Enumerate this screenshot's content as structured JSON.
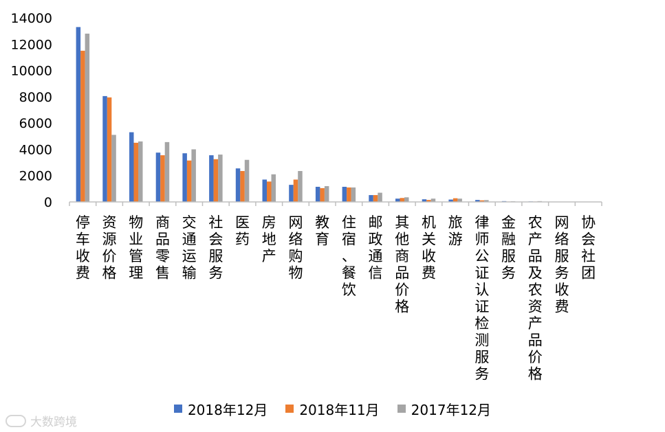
{
  "chart_data": {
    "type": "bar",
    "title": "",
    "xlabel": "",
    "ylabel": "",
    "ylim": [
      0,
      14000
    ],
    "yticks": [
      0,
      2000,
      4000,
      6000,
      8000,
      10000,
      12000,
      14000
    ],
    "grid": false,
    "legend_position": "bottom",
    "categories": [
      "停车收费",
      "资源价格",
      "物业管理",
      "商品零售",
      "交通运输",
      "社会服务",
      "医药",
      "房地产",
      "网络购物",
      "教育",
      "住宿、餐饮",
      "邮政通信",
      "其他商品价格",
      "机关收费",
      "旅游",
      "律师公证认证检测服务",
      "金融服务",
      "农产品及农资产品价格",
      "网络服务收费",
      "协会社团"
    ],
    "series": [
      {
        "name": "2018年12月",
        "color": "#4472c4",
        "values": [
          13300,
          8050,
          5300,
          3750,
          3700,
          3550,
          2550,
          1700,
          1300,
          1150,
          1150,
          520,
          250,
          200,
          180,
          150,
          60,
          40,
          10,
          5
        ]
      },
      {
        "name": "2018年11月",
        "color": "#ed7d31",
        "values": [
          11500,
          7950,
          4500,
          3550,
          3150,
          3250,
          2350,
          1550,
          1700,
          1050,
          1100,
          520,
          300,
          150,
          280,
          120,
          30,
          30,
          10,
          5
        ]
      },
      {
        "name": "2017年12月",
        "color": "#a5a5a5",
        "values": [
          12800,
          5100,
          4600,
          4550,
          4000,
          3600,
          3200,
          2100,
          2350,
          1200,
          1100,
          700,
          350,
          250,
          250,
          140,
          50,
          60,
          10,
          5
        ]
      }
    ]
  },
  "watermark": {
    "text": "大数跨境"
  }
}
